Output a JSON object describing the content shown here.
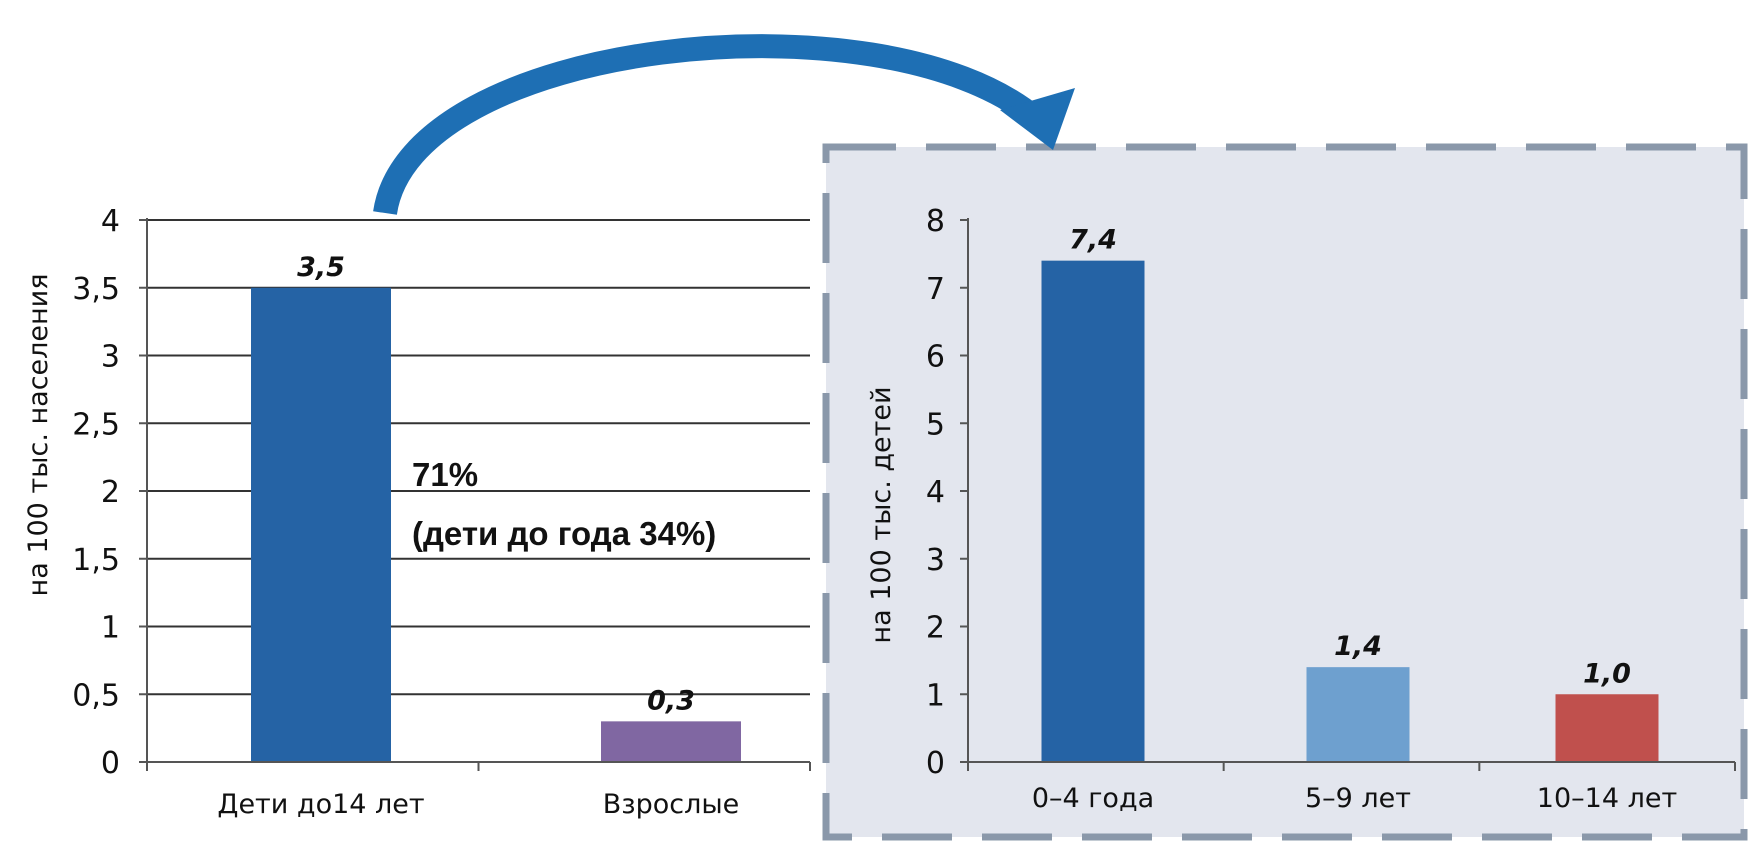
{
  "colors": {
    "bar_dark_blue": "#2563a5",
    "bar_purple": "#8067a2",
    "bar_light_blue": "#6ea0cf",
    "bar_red": "#c0504d",
    "arrow": "#1e6fb4",
    "panel_bg": "#e3e6ee",
    "panel_border": "#8a98aa"
  },
  "annotation": {
    "line1": "71%",
    "line2": "(дети до года 34%)"
  },
  "chart_data": [
    {
      "type": "bar",
      "categories": [
        "Дети до14 лет",
        "Взрослые"
      ],
      "values": [
        3.5,
        0.3
      ],
      "data_labels": [
        "3,5",
        "0,3"
      ],
      "colors": [
        "#2563a5",
        "#8067a2"
      ],
      "ylabel": "на 100 тыс. населения",
      "ylim": [
        0,
        4
      ],
      "yticks": [
        {
          "v": 0,
          "label": "0"
        },
        {
          "v": 0.5,
          "label": "0,5"
        },
        {
          "v": 1,
          "label": "1"
        },
        {
          "v": 1.5,
          "label": "1,5"
        },
        {
          "v": 2,
          "label": "2"
        },
        {
          "v": 2.5,
          "label": "2,5"
        },
        {
          "v": 3,
          "label": "3"
        },
        {
          "v": 3.5,
          "label": "3,5"
        },
        {
          "v": 4,
          "label": "4"
        }
      ],
      "grid": true
    },
    {
      "type": "bar",
      "categories": [
        "0–4 года",
        "5–9 лет",
        "10–14 лет"
      ],
      "values": [
        7.4,
        1.4,
        1.0
      ],
      "data_labels": [
        "7,4",
        "1,4",
        "1,0"
      ],
      "colors": [
        "#2563a5",
        "#6ea0cf",
        "#c0504d"
      ],
      "ylabel": "на 100 тыс. детей",
      "ylim": [
        0,
        8
      ],
      "yticks": [
        {
          "v": 0,
          "label": "0"
        },
        {
          "v": 1,
          "label": "1"
        },
        {
          "v": 2,
          "label": "2"
        },
        {
          "v": 3,
          "label": "3"
        },
        {
          "v": 4,
          "label": "4"
        },
        {
          "v": 5,
          "label": "5"
        },
        {
          "v": 6,
          "label": "6"
        },
        {
          "v": 7,
          "label": "7"
        },
        {
          "v": 8,
          "label": "8"
        }
      ],
      "grid": false
    }
  ]
}
